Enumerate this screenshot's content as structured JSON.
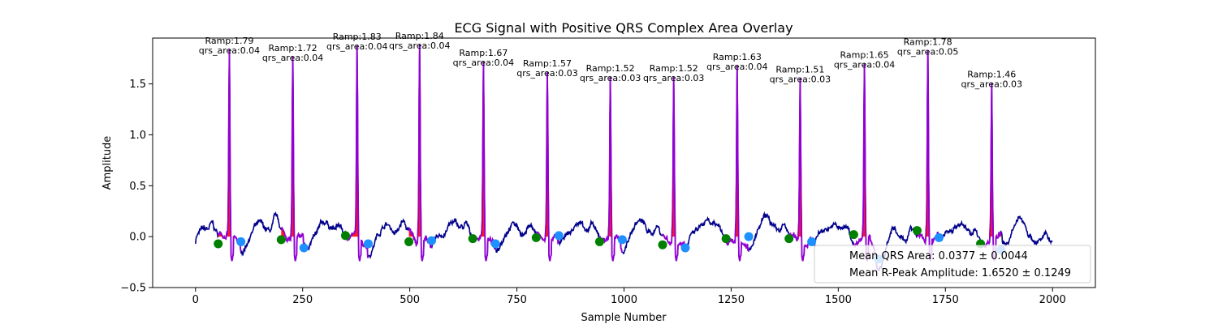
{
  "chart_data": {
    "type": "line",
    "title": "ECG Signal with Positive QRS Complex Area Overlay",
    "xlabel": "Sample Number",
    "ylabel": "Amplitude",
    "xlim": [
      -100,
      2100
    ],
    "ylim": [
      -0.5,
      1.95
    ],
    "xticks": [
      0,
      250,
      500,
      750,
      1000,
      1250,
      1500,
      1750,
      2000
    ],
    "yticks": [
      -0.5,
      0.0,
      0.5,
      1.0,
      1.5
    ],
    "xtick_labels": [
      "0",
      "250",
      "500",
      "750",
      "1000",
      "1250",
      "1500",
      "1750",
      "2000"
    ],
    "ytick_labels": [
      "−0.5",
      "0.0",
      "0.5",
      "1.0",
      "1.5"
    ],
    "grid": false,
    "colors": {
      "signal": "#00008b",
      "qrs_segment": "#9400d3",
      "qrs_area": "#ff0000",
      "q_point": "#008000",
      "s_point": "#1e90ff"
    },
    "r_peaks": [
      {
        "x": 79,
        "amplitude": 1.79,
        "ramp_label": "Ramp:1.79",
        "area_label": "qrs_area:0.04"
      },
      {
        "x": 227,
        "amplitude": 1.72,
        "ramp_label": "Ramp:1.72",
        "area_label": "qrs_area:0.04"
      },
      {
        "x": 377,
        "amplitude": 1.83,
        "ramp_label": "Ramp:1.83",
        "area_label": "qrs_area:0.04"
      },
      {
        "x": 523,
        "amplitude": 1.84,
        "ramp_label": "Ramp:1.84",
        "area_label": "qrs_area:0.04"
      },
      {
        "x": 672,
        "amplitude": 1.67,
        "ramp_label": "Ramp:1.67",
        "area_label": "qrs_area:0.04"
      },
      {
        "x": 821,
        "amplitude": 1.57,
        "ramp_label": "Ramp:1.57",
        "area_label": "qrs_area:0.03"
      },
      {
        "x": 968,
        "amplitude": 1.52,
        "ramp_label": "Ramp:1.52",
        "area_label": "qrs_area:0.03"
      },
      {
        "x": 1116,
        "amplitude": 1.52,
        "ramp_label": "Ramp:1.52",
        "area_label": "qrs_area:0.03"
      },
      {
        "x": 1264,
        "amplitude": 1.63,
        "ramp_label": "Ramp:1.63",
        "area_label": "qrs_area:0.04"
      },
      {
        "x": 1411,
        "amplitude": 1.51,
        "ramp_label": "Ramp:1.51",
        "area_label": "qrs_area:0.03"
      },
      {
        "x": 1561,
        "amplitude": 1.65,
        "ramp_label": "Ramp:1.65",
        "area_label": "qrs_area:0.04"
      },
      {
        "x": 1709,
        "amplitude": 1.78,
        "ramp_label": "Ramp:1.78",
        "area_label": "qrs_area:0.05"
      },
      {
        "x": 1858,
        "amplitude": 1.46,
        "ramp_label": "Ramp:1.46",
        "area_label": "qrs_area:0.03"
      }
    ],
    "q_points": [
      {
        "x": 53,
        "y": -0.07
      },
      {
        "x": 200,
        "y": -0.03
      },
      {
        "x": 350,
        "y": 0.01
      },
      {
        "x": 498,
        "y": -0.05
      },
      {
        "x": 647,
        "y": -0.02
      },
      {
        "x": 795,
        "y": -0.01
      },
      {
        "x": 943,
        "y": -0.05
      },
      {
        "x": 1090,
        "y": -0.08
      },
      {
        "x": 1238,
        "y": -0.02
      },
      {
        "x": 1385,
        "y": -0.02
      },
      {
        "x": 1536,
        "y": 0.02
      },
      {
        "x": 1684,
        "y": 0.06
      },
      {
        "x": 1832,
        "y": -0.07
      }
    ],
    "s_points": [
      {
        "x": 106,
        "y": -0.05
      },
      {
        "x": 253,
        "y": -0.11
      },
      {
        "x": 403,
        "y": -0.07
      },
      {
        "x": 551,
        "y": -0.04
      },
      {
        "x": 700,
        "y": -0.07
      },
      {
        "x": 848,
        "y": 0.01
      },
      {
        "x": 996,
        "y": -0.03
      },
      {
        "x": 1143,
        "y": -0.11
      },
      {
        "x": 1291,
        "y": 0.0
      },
      {
        "x": 1438,
        "y": -0.05
      },
      {
        "x": 1594,
        "y": -0.22
      },
      {
        "x": 1735,
        "y": -0.01
      },
      {
        "x": 1880,
        "y": -0.13
      }
    ],
    "legend": {
      "placement": "lower-right",
      "entries": [
        "Mean QRS Area: 0.0377 ± 0.0044",
        "Mean R-Peak Amplitude: 1.6520 ± 0.1249"
      ]
    }
  }
}
